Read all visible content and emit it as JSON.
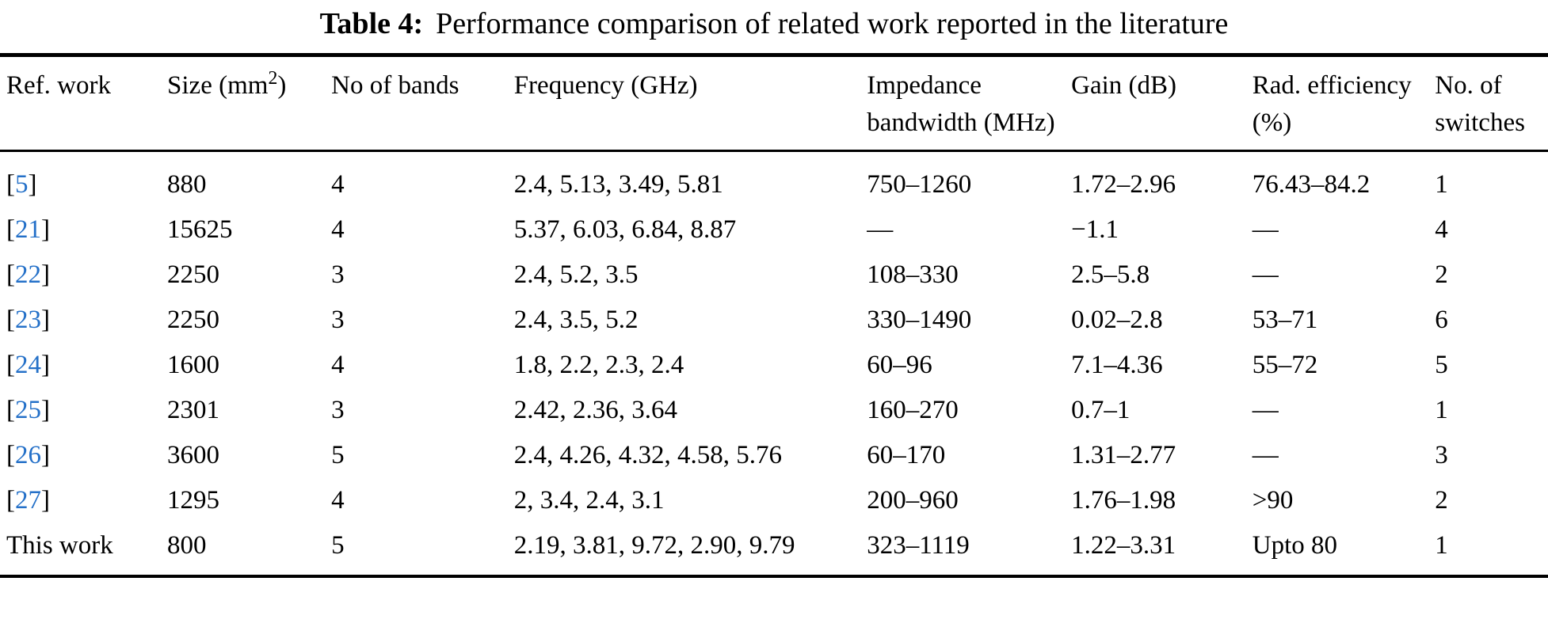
{
  "colors": {
    "text": "#000000",
    "link_blue": "#2470c8",
    "background": "#ffffff"
  },
  "caption": {
    "label": "Table 4:",
    "text": "Performance comparison of related work reported in the literature"
  },
  "table": {
    "columns": [
      {
        "key": "ref",
        "label": "Ref. work"
      },
      {
        "key": "size",
        "label": "Size (mm",
        "sup": "2",
        "after": ")"
      },
      {
        "key": "bands",
        "label": "No of bands"
      },
      {
        "key": "freq",
        "label": "Frequency (GHz)"
      },
      {
        "key": "bw",
        "label": "Impedance bandwidth (MHz)"
      },
      {
        "key": "gain",
        "label": "Gain (dB)"
      },
      {
        "key": "eff",
        "label": "Rad. efficiency (%)"
      },
      {
        "key": "switches",
        "label": "No. of switches"
      }
    ],
    "rows": [
      {
        "ref": {
          "text": "5",
          "link": true
        },
        "size": "880",
        "bands": "4",
        "freq": "2.4, 5.13, 3.49, 5.81",
        "bw": "750–1260",
        "gain": "1.72–2.96",
        "eff": "76.43–84.2",
        "switches": "1"
      },
      {
        "ref": {
          "text": "21",
          "link": true
        },
        "size": "15625",
        "bands": "4",
        "freq": "5.37, 6.03, 6.84, 8.87",
        "bw": "—",
        "gain": "−1.1",
        "eff": "—",
        "switches": "4"
      },
      {
        "ref": {
          "text": "22",
          "link": true
        },
        "size": "2250",
        "bands": "3",
        "freq": "2.4, 5.2, 3.5",
        "bw": "108–330",
        "gain": "2.5–5.8",
        "eff": "—",
        "switches": "2"
      },
      {
        "ref": {
          "text": "23",
          "link": true
        },
        "size": "2250",
        "bands": "3",
        "freq": "2.4, 3.5, 5.2",
        "bw": "330–1490",
        "gain": "0.02–2.8",
        "eff": "53–71",
        "switches": "6"
      },
      {
        "ref": {
          "text": "24",
          "link": true
        },
        "size": "1600",
        "bands": "4",
        "freq": "1.8, 2.2, 2.3, 2.4",
        "bw": "60–96",
        "gain": "7.1–4.36",
        "eff": "55–72",
        "switches": "5"
      },
      {
        "ref": {
          "text": "25",
          "link": true
        },
        "size": "2301",
        "bands": "3",
        "freq": "2.42, 2.36, 3.64",
        "bw": "160–270",
        "gain": "0.7–1",
        "eff": "—",
        "switches": "1"
      },
      {
        "ref": {
          "text": "26",
          "link": true
        },
        "size": "3600",
        "bands": "5",
        "freq": "2.4, 4.26, 4.32, 4.58, 5.76",
        "bw": "60–170",
        "gain": "1.31–2.77",
        "eff": "—",
        "switches": "3"
      },
      {
        "ref": {
          "text": "27",
          "link": true
        },
        "size": "1295",
        "bands": "4",
        "freq": "2, 3.4, 2.4, 3.1",
        "bw": "200–960",
        "gain": "1.76–1.98",
        "eff": ">90",
        "switches": "2"
      },
      {
        "ref": {
          "text": "This work",
          "link": false
        },
        "size": "800",
        "bands": "5",
        "freq": "2.19, 3.81, 9.72, 2.90, 9.79",
        "bw": "323–1119",
        "gain": "1.22–3.31",
        "eff": "Upto 80",
        "switches": "1"
      }
    ]
  }
}
